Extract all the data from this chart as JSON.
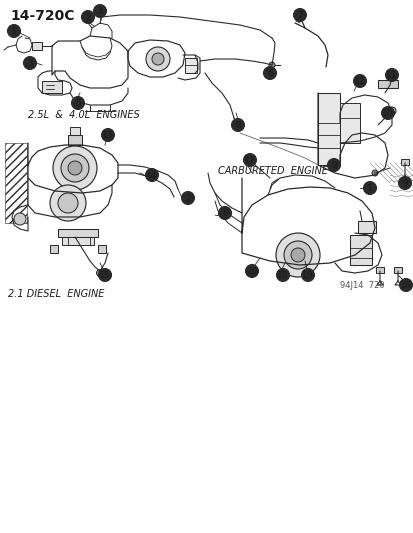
{
  "bg_color": "#f5f4f0",
  "title": "14-720C",
  "watermark": "94J14  720",
  "label_25L": "2.5L  &  4.0L  ENGINES",
  "label_diesel": "2.1 DIESEL  ENGINE",
  "label_carb": "CARBURETED  ENGINE",
  "figsize": [
    4.14,
    5.33
  ],
  "dpi": 100,
  "text_color": "#1a1a1a",
  "line_color": "#2a2a2a",
  "callout_r": 6.5,
  "callout_fs": 6.5
}
